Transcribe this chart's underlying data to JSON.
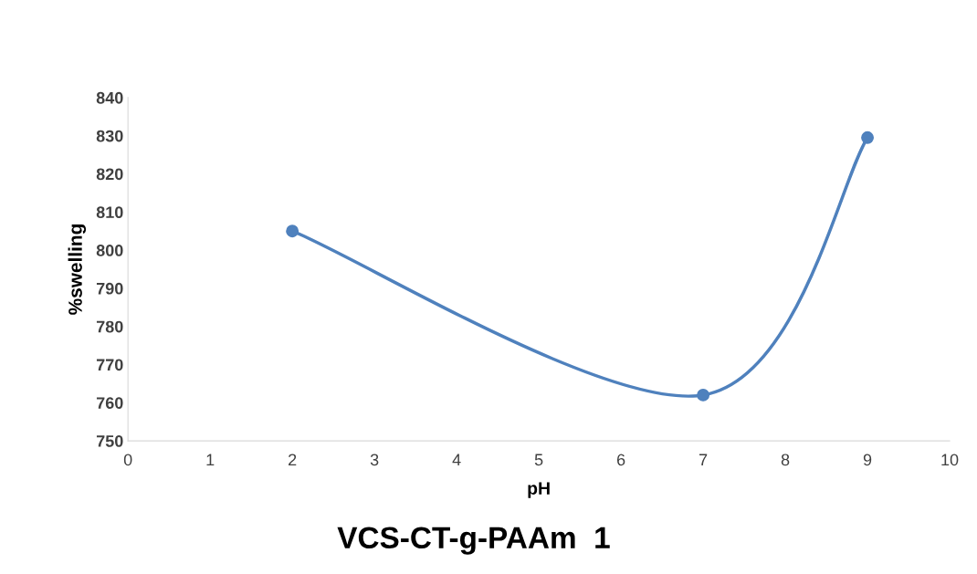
{
  "chart_data": {
    "type": "line",
    "title": "VCS-CT-g-PAAm  1",
    "xlabel": "pH",
    "ylabel": "%swelling",
    "x": [
      2,
      7,
      9
    ],
    "series": [
      {
        "color": "#4f81bd",
        "values": [
          805,
          762,
          829.5
        ]
      }
    ],
    "xlim": [
      0,
      10
    ],
    "xticks": [
      0,
      1,
      2,
      3,
      4,
      5,
      6,
      7,
      8,
      9,
      10
    ],
    "ylim": [
      750,
      840
    ],
    "yticks": [
      750,
      760,
      770,
      780,
      790,
      800,
      810,
      820,
      830,
      840
    ],
    "grid": false,
    "legend": false,
    "marker": "circle",
    "line_style": "solid"
  }
}
